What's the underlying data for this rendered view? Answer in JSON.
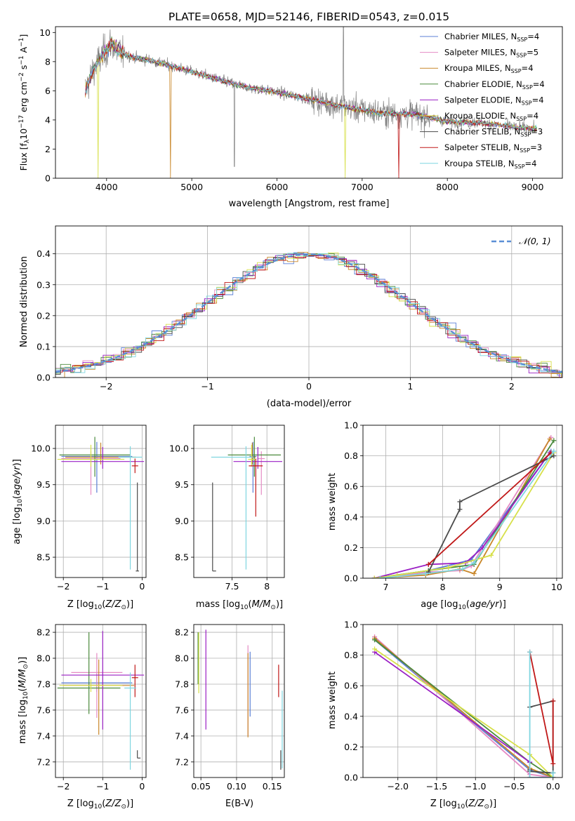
{
  "figure": {
    "title": "PLATE=0658, MJD=52146, FIBERID=0543, z=0.015"
  },
  "colors": {
    "Chabrier MILES": "#5b7fd6",
    "Salpeter MILES": "#e58bc4",
    "Kroupa MILES": "#c9872a",
    "Chabrier ELODIE": "#4a8a3c",
    "Salpeter ELODIE": "#9a1fc4",
    "Kroupa ELODIE": "#d7e04a",
    "Chabrier STELIB": "#4a4a4a",
    "Salpeter STELIB": "#c01818",
    "Kroupa STELIB": "#7fd6e0",
    "data": "#808080",
    "normal": "#5b8fd6"
  },
  "chart_data": [
    {
      "id": "spectrum",
      "type": "line",
      "xlabel": "wavelength [Angstrom, rest frame]",
      "xlim": [
        3400,
        9350
      ],
      "ylim": [
        0,
        10.4
      ],
      "xticks": [
        4000,
        5000,
        6000,
        7000,
        8000,
        9000
      ],
      "yticks": [
        0,
        2,
        4,
        6,
        8,
        10
      ],
      "legend_position": "top-right",
      "legend": [
        {
          "name": "Chabrier MILES",
          "nssp": "4"
        },
        {
          "name": "Salpeter MILES",
          "nssp": "5"
        },
        {
          "name": "Kroupa MILES",
          "nssp": "4"
        },
        {
          "name": "Chabrier ELODIE",
          "nssp": "4"
        },
        {
          "name": "Salpeter ELODIE",
          "nssp": "4"
        },
        {
          "name": "Kroupa ELODIE",
          "nssp": "4"
        },
        {
          "name": "Chabrier STELIB",
          "nssp": "3"
        },
        {
          "name": "Salpeter STELIB",
          "nssp": "3"
        },
        {
          "name": "Kroupa STELIB",
          "nssp": "4"
        }
      ],
      "continuum": [
        [
          3750,
          6.0
        ],
        [
          3850,
          7.5
        ],
        [
          3950,
          8.4
        ],
        [
          4050,
          9.2
        ],
        [
          4150,
          8.7
        ],
        [
          4300,
          8.3
        ],
        [
          4500,
          8.1
        ],
        [
          4700,
          7.8
        ],
        [
          5000,
          7.3
        ],
        [
          5300,
          6.8
        ],
        [
          5600,
          6.3
        ],
        [
          6000,
          5.9
        ],
        [
          6400,
          5.4
        ],
        [
          6800,
          4.9
        ],
        [
          7200,
          4.5
        ],
        [
          7600,
          4.4
        ],
        [
          8000,
          3.9
        ],
        [
          8400,
          3.8
        ],
        [
          8800,
          3.5
        ],
        [
          9050,
          3.4
        ]
      ],
      "drops": [
        {
          "x": 3900,
          "y": 0,
          "series": "Kroupa ELODIE"
        },
        {
          "x": 4750,
          "y": 0,
          "series": "Kroupa MILES"
        },
        {
          "x": 6800,
          "y": 0,
          "series": "Kroupa ELODIE"
        },
        {
          "x": 7430,
          "y": 0,
          "series": "Salpeter STELIB"
        }
      ]
    },
    {
      "id": "residuals",
      "type": "histogram",
      "xlabel": "(data-model)/error",
      "xlim": [
        -2.5,
        2.5
      ],
      "ylim": [
        0,
        0.49
      ],
      "xticks": [
        -2,
        -1,
        0,
        1,
        2
      ],
      "yticks": [
        0.0,
        0.1,
        0.2,
        0.3,
        0.4
      ],
      "legend_position": "top-right",
      "legend": [
        {
          "name": "N(0,1)"
        }
      ],
      "bin_width": 0.1
    },
    {
      "id": "age_vs_Z",
      "type": "errorbar",
      "xlim": [
        -2.2,
        0.1
      ],
      "ylim": [
        8.22,
        10.32
      ],
      "xticks": [
        -2,
        -1,
        0
      ],
      "yticks": [
        8.5,
        9.0,
        9.5,
        10.0
      ],
      "points": [
        {
          "series": "Chabrier MILES",
          "x": -1.15,
          "xerr": [
            0.9,
            0.9
          ],
          "y": 9.89,
          "yerr": [
            0.5,
            0.2
          ]
        },
        {
          "series": "Salpeter MILES",
          "x": -1.3,
          "xerr": [
            0.75,
            0.75
          ],
          "y": 9.86,
          "yerr": [
            0.5,
            0.1
          ]
        },
        {
          "series": "Kroupa MILES",
          "x": -1.05,
          "xerr": [
            0.9,
            0.9
          ],
          "y": 9.88,
          "yerr": [
            0.1,
            0.2
          ]
        },
        {
          "series": "Chabrier ELODIE",
          "x": -1.2,
          "xerr": [
            0.9,
            0.9
          ],
          "y": 9.91,
          "yerr": [
            0.3,
            0.25
          ]
        },
        {
          "series": "Salpeter ELODIE",
          "x": -1.0,
          "xerr": [
            1.05,
            1.05
          ],
          "y": 9.82,
          "yerr": [
            0.1,
            0.2
          ]
        },
        {
          "series": "Kroupa ELODIE",
          "x": -1.3,
          "xerr": [
            0.85,
            0.85
          ],
          "y": 9.85,
          "yerr": [
            0.1,
            0.2
          ]
        },
        {
          "series": "Chabrier STELIB",
          "x": -0.12,
          "xerr": [
            0.04,
            0.04
          ],
          "y": 8.31,
          "yerr": [
            0.0,
            1.22
          ]
        },
        {
          "series": "Salpeter STELIB",
          "x": -0.18,
          "xerr": [
            0.08,
            0.08
          ],
          "y": 9.76,
          "yerr": [
            0.1,
            0.1
          ]
        },
        {
          "series": "Kroupa STELIB",
          "x": -0.3,
          "xerr": [
            0.3,
            0.3
          ],
          "y": 9.88,
          "yerr": [
            1.55,
            0.15
          ]
        }
      ]
    },
    {
      "id": "age_vs_mass",
      "type": "errorbar",
      "xlim": [
        6.95,
        8.25
      ],
      "ylim": [
        8.22,
        10.32
      ],
      "xticks": [
        7.5,
        8.0
      ],
      "yticks": [
        8.5,
        9.0,
        9.5,
        10.0
      ],
      "points": [
        {
          "series": "Chabrier MILES",
          "x": 7.8,
          "xerr": [
            0.05,
            0.05
          ],
          "y": 9.89,
          "yerr": [
            0.5,
            0.2
          ]
        },
        {
          "series": "Salpeter MILES",
          "x": 7.92,
          "xerr": [
            0.05,
            0.05
          ],
          "y": 9.86,
          "yerr": [
            0.5,
            0.1
          ]
        },
        {
          "series": "Kroupa MILES",
          "x": 7.79,
          "xerr": [
            0.05,
            0.05
          ],
          "y": 9.88,
          "yerr": [
            0.1,
            0.2
          ]
        },
        {
          "series": "Chabrier ELODIE",
          "x": 7.82,
          "xerr": [
            0.38,
            0.38
          ],
          "y": 9.91,
          "yerr": [
            0.3,
            0.25
          ]
        },
        {
          "series": "Salpeter ELODIE",
          "x": 7.87,
          "xerr": [
            0.35,
            0.35
          ],
          "y": 9.82,
          "yerr": [
            0.1,
            0.2
          ]
        },
        {
          "series": "Kroupa ELODIE",
          "x": 7.78,
          "xerr": [
            0.05,
            0.05
          ],
          "y": 9.85,
          "yerr": [
            0.1,
            0.2
          ]
        },
        {
          "series": "Chabrier STELIB",
          "x": 7.22,
          "xerr": [
            0.0,
            0.05
          ],
          "y": 8.31,
          "yerr": [
            0.0,
            1.22
          ]
        },
        {
          "series": "Salpeter STELIB",
          "x": 7.84,
          "xerr": [
            0.1,
            0.1
          ],
          "y": 9.76,
          "yerr": [
            0.7,
            0.1
          ]
        },
        {
          "series": "Kroupa STELIB",
          "x": 7.7,
          "xerr": [
            0.5,
            0.1
          ],
          "y": 9.88,
          "yerr": [
            1.55,
            0.15
          ]
        }
      ]
    },
    {
      "id": "mass_weight_vs_age",
      "type": "line",
      "xlabel_text": "age",
      "ylabel": "mass weight",
      "xlim": [
        6.6,
        10.1
      ],
      "ylim": [
        0,
        1.0
      ],
      "xticks": [
        7,
        8,
        9,
        10
      ],
      "yticks": [
        0.0,
        0.2,
        0.4,
        0.6,
        0.8,
        1.0
      ],
      "series": [
        {
          "name": "Chabrier MILES",
          "x": [
            6.8,
            7.75,
            8.5,
            9.9
          ],
          "y": [
            0.0,
            0.05,
            0.12,
            0.83
          ]
        },
        {
          "name": "Salpeter MILES",
          "x": [
            6.8,
            7.75,
            8.3,
            8.5,
            9.9
          ],
          "y": [
            0.0,
            0.04,
            0.05,
            0.08,
            0.92
          ]
        },
        {
          "name": "Kroupa MILES",
          "x": [
            6.8,
            7.7,
            8.3,
            8.55,
            9.88
          ],
          "y": [
            0.0,
            0.02,
            0.06,
            0.03,
            0.91
          ]
        },
        {
          "name": "Chabrier ELODIE",
          "x": [
            6.8,
            7.75,
            8.55,
            9.95
          ],
          "y": [
            0.0,
            0.05,
            0.09,
            0.9
          ]
        },
        {
          "name": "Salpeter ELODIE",
          "x": [
            6.8,
            7.75,
            8.4,
            8.7,
            9.88
          ],
          "y": [
            0.0,
            0.09,
            0.1,
            0.2,
            0.82
          ]
        },
        {
          "name": "Kroupa ELODIE",
          "x": [
            6.8,
            7.2,
            8.1,
            8.85,
            9.95
          ],
          "y": [
            0.0,
            0.02,
            0.07,
            0.15,
            0.82
          ]
        },
        {
          "name": "Chabrier STELIB",
          "x": [
            7.75,
            8.3,
            8.3,
            9.95
          ],
          "y": [
            0.04,
            0.45,
            0.5,
            0.8
          ]
        },
        {
          "name": "Salpeter STELIB",
          "x": [
            7.75,
            9.9
          ],
          "y": [
            0.09,
            0.82
          ]
        },
        {
          "name": "Kroupa STELIB",
          "x": [
            6.9,
            7.7,
            8.35,
            8.55,
            9.95
          ],
          "y": [
            0.0,
            0.03,
            0.06,
            0.1,
            0.83
          ]
        }
      ]
    },
    {
      "id": "mass_vs_Z",
      "type": "errorbar",
      "xlim": [
        -2.2,
        0.1
      ],
      "ylim": [
        7.08,
        8.26
      ],
      "xticks": [
        -2,
        -1,
        0
      ],
      "yticks": [
        7.2,
        7.4,
        7.6,
        7.8,
        8.0,
        8.2
      ],
      "points": [
        {
          "series": "Chabrier MILES",
          "x": -1.15,
          "xerr": [
            0.9,
            0.9
          ],
          "y": 7.81,
          "yerr": [
            0.07,
            0.07
          ]
        },
        {
          "series": "Salpeter MILES",
          "x": -1.15,
          "xerr": [
            0.65,
            0.65
          ],
          "y": 7.89,
          "yerr": [
            0.35,
            0.15
          ]
        },
        {
          "series": "Kroupa MILES",
          "x": -1.1,
          "xerr": [
            0.9,
            0.9
          ],
          "y": 7.79,
          "yerr": [
            0.38,
            0.2
          ]
        },
        {
          "series": "Chabrier ELODIE",
          "x": -1.35,
          "xerr": [
            0.8,
            0.8
          ],
          "y": 7.77,
          "yerr": [
            0.2,
            0.43
          ]
        },
        {
          "series": "Salpeter ELODIE",
          "x": -1.0,
          "xerr": [
            1.05,
            1.05
          ],
          "y": 7.87,
          "yerr": [
            0.42,
            0.34
          ]
        },
        {
          "series": "Kroupa ELODIE",
          "x": -1.3,
          "xerr": [
            0.8,
            0.8
          ],
          "y": 7.79,
          "yerr": [
            0.05,
            0.05
          ]
        },
        {
          "series": "Chabrier STELIB",
          "x": -0.12,
          "xerr": [
            0.0,
            0.08
          ],
          "y": 7.23,
          "yerr": [
            0.0,
            0.06
          ]
        },
        {
          "series": "Salpeter STELIB",
          "x": -0.18,
          "xerr": [
            0.08,
            0.08
          ],
          "y": 7.85,
          "yerr": [
            0.15,
            0.1
          ]
        },
        {
          "series": "Kroupa STELIB",
          "x": -0.3,
          "xerr": [
            0.15,
            0.15
          ],
          "y": 7.77,
          "yerr": [
            0.63,
            0.12
          ]
        }
      ]
    },
    {
      "id": "mass_vs_EBV",
      "type": "errorbar",
      "xlabel": "E(B-V)",
      "xlim": [
        0.04,
        0.167
      ],
      "ylim": [
        7.08,
        8.26
      ],
      "xticks": [
        0.05,
        0.1,
        0.15
      ],
      "yticks": [
        7.2,
        7.4,
        7.6,
        7.8,
        8.0,
        8.2
      ],
      "points": [
        {
          "series": "Chabrier MILES",
          "x": 0.119,
          "y": 7.8,
          "yerr": [
            0.25,
            0.25
          ]
        },
        {
          "series": "Salpeter MILES",
          "x": 0.116,
          "y": 7.85,
          "yerr": [
            0.45,
            0.25
          ]
        },
        {
          "series": "Kroupa MILES",
          "x": 0.116,
          "y": 7.79,
          "yerr": [
            0.4,
            0.25
          ]
        },
        {
          "series": "Chabrier ELODIE",
          "x": 0.046,
          "y": 7.9,
          "yerr": [
            0.1,
            0.3
          ]
        },
        {
          "series": "Salpeter ELODIE",
          "x": 0.057,
          "y": 7.85,
          "yerr": [
            0.4,
            0.37
          ]
        },
        {
          "series": "Kroupa ELODIE",
          "x": 0.047,
          "y": 7.95,
          "yerr": [
            0.22,
            0.25
          ]
        },
        {
          "series": "Chabrier STELIB",
          "x": 0.162,
          "y": 7.2,
          "yerr": [
            0.06,
            0.09
          ]
        },
        {
          "series": "Salpeter STELIB",
          "x": 0.159,
          "y": 7.83,
          "yerr": [
            0.13,
            0.12
          ]
        },
        {
          "series": "Kroupa STELIB",
          "x": 0.164,
          "y": 7.45,
          "yerr": [
            0.3,
            0.3
          ]
        }
      ]
    },
    {
      "id": "mass_weight_vs_Z",
      "type": "line",
      "ylabel": "mass weight",
      "xlim": [
        -2.45,
        0.12
      ],
      "ylim": [
        0,
        1.0
      ],
      "xticks": [
        -2.0,
        -1.5,
        -1.0,
        -0.5,
        0.0
      ],
      "yticks": [
        0.0,
        0.2,
        0.4,
        0.6,
        0.8,
        1.0
      ],
      "series": [
        {
          "name": "Chabrier MILES",
          "x": [
            -2.3,
            -0.3,
            0.0
          ],
          "y": [
            0.9,
            0.05,
            0.0
          ]
        },
        {
          "name": "Salpeter MILES",
          "x": [
            -2.3,
            -0.3,
            0.0
          ],
          "y": [
            0.92,
            0.02,
            0.0
          ]
        },
        {
          "name": "Kroupa MILES",
          "x": [
            -2.3,
            -0.3,
            0.0
          ],
          "y": [
            0.91,
            0.06,
            0.0
          ]
        },
        {
          "name": "Chabrier ELODIE",
          "x": [
            -2.3,
            -0.3,
            0.0
          ],
          "y": [
            0.9,
            0.1,
            0.0
          ]
        },
        {
          "name": "Salpeter ELODIE",
          "x": [
            -2.3,
            -0.3,
            -0.3,
            0.0
          ],
          "y": [
            0.82,
            0.1,
            0.0,
            0.0
          ]
        },
        {
          "name": "Kroupa ELODIE",
          "x": [
            -2.3,
            -0.3,
            0.0
          ],
          "y": [
            0.84,
            0.15,
            0.0
          ]
        },
        {
          "name": "Chabrier STELIB",
          "x": [
            -0.3,
            0.0,
            0.0,
            -0.3,
            -0.3
          ],
          "y": [
            0.46,
            0.5,
            0.03,
            0.04,
            0.05
          ]
        },
        {
          "name": "Salpeter STELIB",
          "x": [
            -0.3,
            0.0,
            0.0
          ],
          "y": [
            0.82,
            0.09,
            0.5
          ]
        },
        {
          "name": "Kroupa STELIB",
          "x": [
            -0.3,
            -0.3,
            0.0,
            0.0
          ],
          "y": [
            0.82,
            0.0,
            0.0,
            0.03
          ]
        }
      ]
    }
  ],
  "labels": {
    "spectrum_ylabel": "Flux [f",
    "spectrum_ylabel_sub": "λ",
    "spectrum_ylabel_rest": "10",
    "spectrum_ylabel_exp": "−17",
    "spectrum_ylabel_tail": " erg cm",
    "spectrum_ylabel_exp2": "−2",
    "spectrum_ylabel_s": " s",
    "spectrum_ylabel_exp3": "−1",
    "spectrum_ylabel_A": " A",
    "spectrum_ylabel_exp4": "−1",
    "spectrum_ylabel_close": "]",
    "hist_ylabel": "Normed distribution",
    "legend_nssp_prefix": ", N",
    "legend_nssp_sub": "SSP",
    "legend_nssp_eq": "=",
    "normal_label": "𝒩(0, 1)",
    "age_label": "age  [log",
    "age_label_sub": "10",
    "age_label_paren": "(",
    "age_label_ital": "age/yr",
    "age_label_close": ")]",
    "mass_label": "mass [log",
    "mass_label_sub": "10",
    "mass_label_paren": "(",
    "mass_label_ital": "M/M",
    "mass_label_sun": "⊙",
    "mass_label_close": ")]",
    "z_label": "Z [log",
    "z_label_sub": "10",
    "z_label_paren": "(",
    "z_label_ital": "Z/Z",
    "z_label_sun": "⊙",
    "z_label_close": ")]",
    "age_x_label": "age  [log",
    "mw_label": "mass weight"
  }
}
